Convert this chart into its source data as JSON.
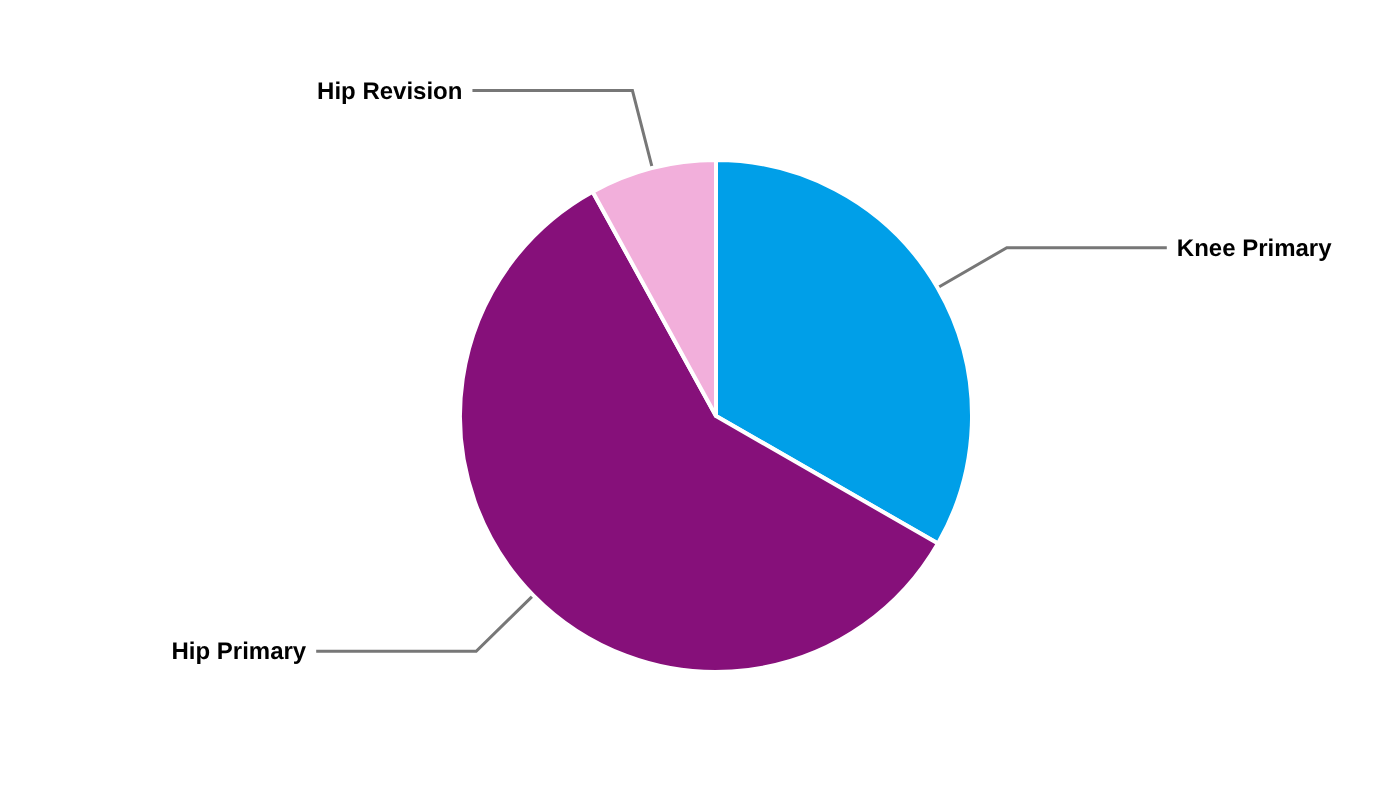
{
  "chart_data": {
    "type": "pie",
    "categories": [
      "Knee Primary",
      "Hip Primary",
      "Hip Revision"
    ],
    "values": [
      33.3,
      58.7,
      8
    ],
    "colors": [
      "#009fe8",
      "#86107a",
      "#f2afdb"
    ],
    "legend": false
  }
}
